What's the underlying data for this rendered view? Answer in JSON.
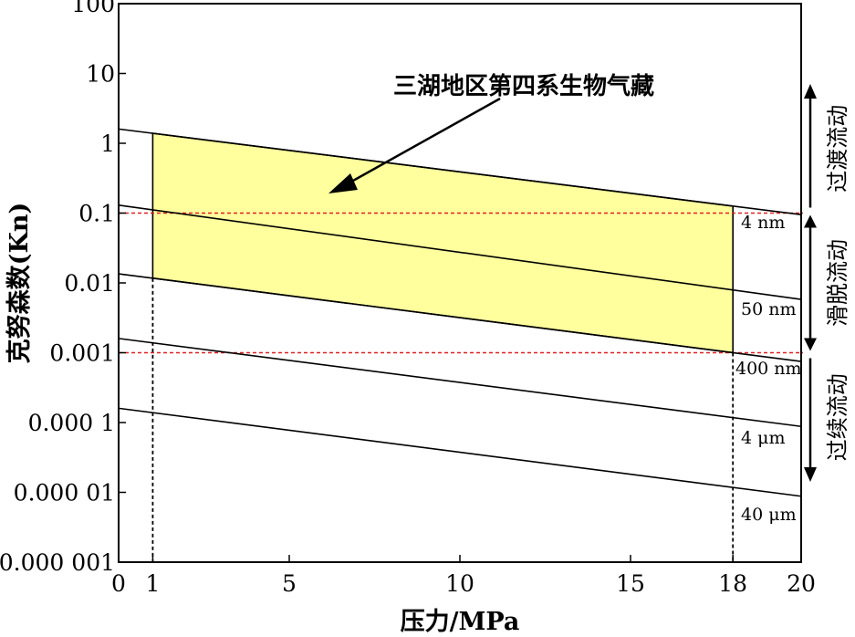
{
  "chart_data": {
    "type": "line",
    "title": "",
    "xlabel": "压力/MPa",
    "ylabel": "克努森数(Kn)",
    "xlim": [
      0,
      20
    ],
    "ylim": [
      1e-06,
      100
    ],
    "yscale": "log",
    "x_ticks": [
      {
        "value": 0,
        "label": "0"
      },
      {
        "value": 1,
        "label": "1"
      },
      {
        "value": 5,
        "label": "5"
      },
      {
        "value": 10,
        "label": "10"
      },
      {
        "value": 15,
        "label": "15"
      },
      {
        "value": 18,
        "label": "18"
      },
      {
        "value": 20,
        "label": "20"
      }
    ],
    "y_ticks": [
      {
        "value": 100,
        "label": "100"
      },
      {
        "value": 10,
        "label": "10"
      },
      {
        "value": 1,
        "label": "1"
      },
      {
        "value": 0.1,
        "label": "0.1"
      },
      {
        "value": 0.01,
        "label": "0.01"
      },
      {
        "value": 0.001,
        "label": "0.001"
      },
      {
        "value": 0.0001,
        "label": "0.000 1"
      },
      {
        "value": 1e-05,
        "label": "0.000 01"
      },
      {
        "value": 1e-06,
        "label": "0.000 001"
      }
    ],
    "series": [
      {
        "name": "4 nm",
        "x": [
          0,
          20
        ],
        "y": [
          1.6,
          0.095
        ]
      },
      {
        "name": "50 nm",
        "x": [
          0,
          20
        ],
        "y": [
          0.13,
          0.0058
        ]
      },
      {
        "name": "400 nm",
        "x": [
          0,
          20
        ],
        "y": [
          0.0135,
          0.00075
        ]
      },
      {
        "name": "4 μm",
        "x": [
          0,
          20
        ],
        "y": [
          0.0016,
          8.8e-05
        ]
      },
      {
        "name": "40 μm",
        "x": [
          0,
          20
        ],
        "y": [
          0.00016,
          8.8e-06
        ]
      }
    ],
    "shaded_region": {
      "x": [
        1,
        18
      ],
      "between": [
        "4 nm",
        "400 nm"
      ],
      "color": "#ffff9e"
    },
    "reference_lines": {
      "horizontal": [
        0.1,
        0.001
      ],
      "horizontal_color": "#e02020",
      "vertical": [
        1,
        18
      ]
    },
    "annotations": [
      {
        "text": "三湖地区第四系生物气藏"
      }
    ],
    "regimes": [
      {
        "label": "过渡流动",
        "range": [
          0.1,
          100
        ]
      },
      {
        "label": "滑脱流动",
        "range": [
          0.001,
          0.1
        ]
      },
      {
        "label": "过渡流动",
        "range": [
          1e-06,
          0.001
        ],
        "label_override": "过续流动"
      }
    ],
    "grid": false,
    "legend": "none"
  },
  "colors": {
    "fill": "#ffff9e",
    "ref_line": "#e02020",
    "line": "#000000"
  }
}
